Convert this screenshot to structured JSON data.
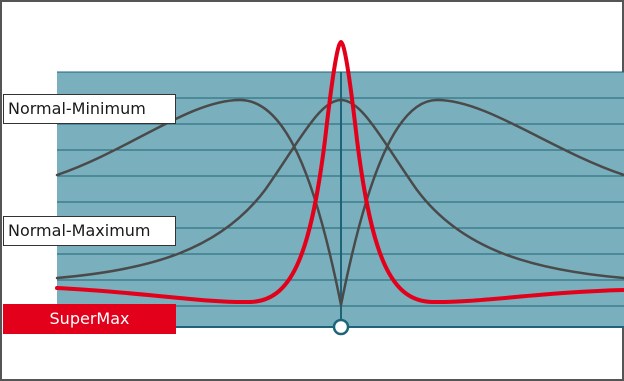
{
  "labels": {
    "normal_minimum": "Normal-Minimum",
    "normal_maximum": "Normal-Maximum",
    "supermax": "SuperMax"
  },
  "colors": {
    "panel": "#7aafbd",
    "grid": "#1d6478",
    "neutral_curve": "#4a4a4a",
    "supermax_curve": "#e2001a",
    "frame": "#555555"
  },
  "icons": {
    "axis_marker": "circle-marker-icon"
  }
}
